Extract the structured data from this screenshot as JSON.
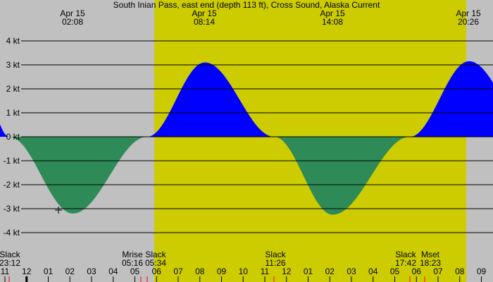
{
  "colors": {
    "night": "#c0c0c0",
    "day": "#cccc00",
    "flood": "#0000ff",
    "ebb": "#2e8b57",
    "grid": "#000000",
    "event_tick": "#ff0000"
  },
  "chart_data": {
    "type": "area",
    "title": "South Inian Pass, east end (depth 113 ft), Cross Sound, Alaska Current",
    "ylabel": "kt",
    "ylim": [
      -4,
      4
    ],
    "y_ticks": [
      "4 kt",
      "3 kt",
      "2 kt",
      "1 kt",
      "0 kt",
      "-1 kt",
      "-2 kt",
      "-3 kt",
      "-4 kt"
    ],
    "y_values": [
      4,
      3,
      2,
      1,
      0,
      -1,
      -2,
      -3,
      -4
    ],
    "x_hour_labels": [
      "11",
      "12",
      "01",
      "02",
      "03",
      "04",
      "05",
      "06",
      "07",
      "08",
      "09",
      "10",
      "11",
      "12",
      "01",
      "02",
      "03",
      "04",
      "05",
      "06",
      "07",
      "08",
      "09"
    ],
    "peaks": [
      {
        "date": "Apr 15",
        "time": "02:08",
        "value": -3.2,
        "type": "max ebb"
      },
      {
        "date": "Apr 15",
        "time": "08:14",
        "value": 3.1,
        "type": "max flood"
      },
      {
        "date": "Apr 15",
        "time": "14:08",
        "value": -3.25,
        "type": "max ebb"
      },
      {
        "date": "Apr 15",
        "time": "20:26",
        "value": 3.15,
        "type": "max flood"
      }
    ],
    "events": [
      {
        "label": "Slack",
        "time": "23:12"
      },
      {
        "label": "Mrise",
        "time": "05:16"
      },
      {
        "label": "Slack",
        "time": "05:34"
      },
      {
        "label": "Slack",
        "time": "11:26"
      },
      {
        "label": "Slack",
        "time": "17:42"
      },
      {
        "label": "Mset",
        "time": "18:23"
      }
    ],
    "daylight": {
      "start_approx": "05:53",
      "end_approx": "20:18"
    },
    "series": [
      {
        "name": "flood (positive)",
        "color": "#0000ff"
      },
      {
        "name": "ebb (negative)",
        "color": "#2e8b57"
      }
    ]
  }
}
